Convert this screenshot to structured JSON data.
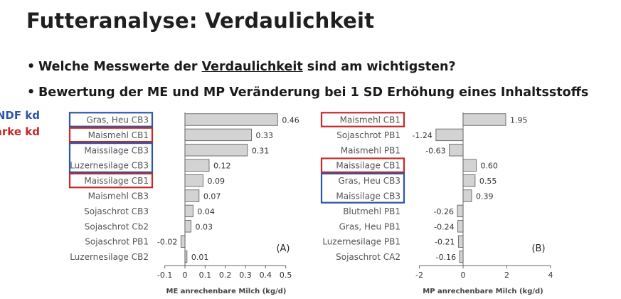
{
  "slide": {
    "title": "Futteranalyse: Verdaulichkeit",
    "bullet1_pre": "Welche Messwerte der ",
    "bullet1_underlined": "Verdaulichkeit",
    "bullet1_post": " sind am wichtigsten?",
    "bullet2": "Bewertung der ME und MP Veränderung bei 1 SD Erhöhung eines Inhaltsstoffs",
    "legend_ndf": "NDF kd",
    "legend_staerke": "Stärke kd",
    "colors": {
      "ndf_box": "#2d55a8",
      "staerke_box": "#c62828",
      "bar_fill": "#d3d3d3",
      "bar_stroke": "#555555"
    }
  },
  "chart_data": [
    {
      "type": "bar",
      "orientation": "horizontal",
      "panel_label": "(A)",
      "xlabel": "ME anrechenbare Milch (kg/d)",
      "xlim": [
        -0.1,
        0.5
      ],
      "xticks": [
        "-0.1",
        "0",
        "0.1",
        "0.2",
        "0.3",
        "0.4",
        "0.5"
      ],
      "categories": [
        "Gras, Heu CB3",
        "Maismehl CB1",
        "Maissilage CB3",
        "Luzernesilage CB3",
        "Maissilage CB1",
        "Maismehl CB3",
        "Sojaschrot CB3",
        "Sojaschrot Cb2",
        "Sojaschrot PB1",
        "Luzernesilage CB2"
      ],
      "values": [
        0.46,
        0.33,
        0.31,
        0.12,
        0.09,
        0.07,
        0.04,
        0.03,
        -0.02,
        0.01
      ],
      "labels": [
        "0.46",
        "0.33",
        "0.31",
        "0.12",
        "0.09",
        "0.07",
        "0.04",
        "0.03",
        "-0.02",
        "0.01"
      ],
      "highlight": [
        "ndf",
        "staerke",
        "ndf",
        "ndf",
        "staerke",
        "",
        "",
        "",
        "",
        ""
      ]
    },
    {
      "type": "bar",
      "orientation": "horizontal",
      "panel_label": "(B)",
      "xlabel": "MP anrechenbare Milch (kg/d)",
      "xlim": [
        -2,
        4
      ],
      "xticks": [
        "-2",
        "0",
        "2",
        "4"
      ],
      "categories": [
        "Maismehl CB1",
        "Sojaschrot PB1",
        "Maismehl PB1",
        "Maissilage CB1",
        "Gras, Heu CB3",
        "Maissilage CB3",
        "Blutmehl PB1",
        "Gras, Heu PB1",
        "Luzernesilage PB1",
        "Sojaschrot CA2"
      ],
      "values": [
        1.95,
        -1.24,
        -0.63,
        0.6,
        0.55,
        0.39,
        -0.26,
        -0.24,
        -0.21,
        -0.16
      ],
      "labels": [
        "1.95",
        "-1.24",
        "-0.63",
        "0.60",
        "0.55",
        "0.39",
        "-0.26",
        "-0.24",
        "-0.21",
        "-0.16"
      ],
      "highlight": [
        "staerke",
        "",
        "",
        "staerke",
        "ndf",
        "ndf",
        "",
        "",
        "",
        ""
      ]
    }
  ]
}
